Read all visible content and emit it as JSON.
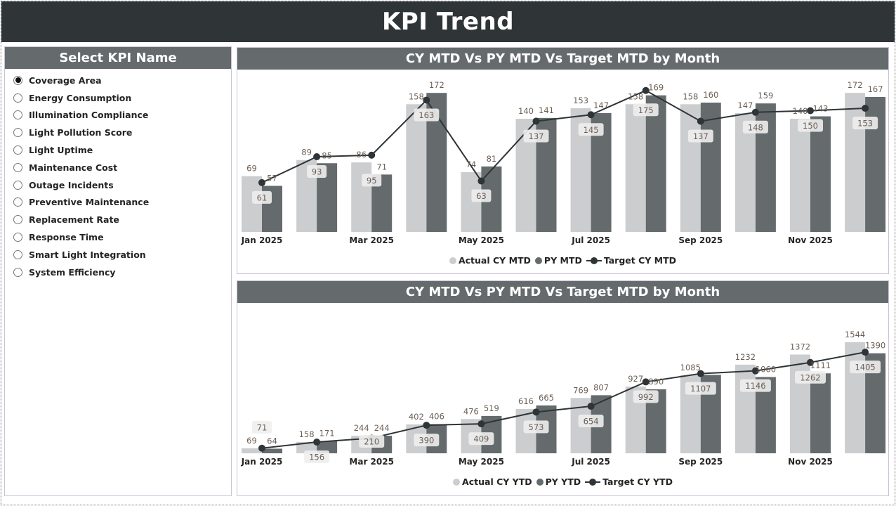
{
  "header": {
    "title": "KPI Trend"
  },
  "kpi_selector": {
    "title": "Select KPI Name",
    "selected": "Coverage Area",
    "items": [
      "Coverage Area",
      "Energy Consumption",
      "Illumination Compliance",
      "Light Pollution Score",
      "Light Uptime",
      "Maintenance Cost",
      "Outage Incidents",
      "Preventive Maintenance",
      "Replacement Rate",
      "Response Time",
      "Smart Light Integration",
      "System Efficiency"
    ]
  },
  "colors": {
    "cy": "#cccdcf",
    "py": "#656b6c",
    "target": "#2f3437",
    "header": "#2f3437",
    "panel_header": "#656b6c",
    "label": "#6b5f55"
  },
  "chart_data": [
    {
      "type": "bar",
      "title": "CY MTD Vs PY MTD Vs Target MTD by Month",
      "categories": [
        "Jan 2025",
        "",
        "Mar 2025",
        "",
        "May 2025",
        "",
        "Jul 2025",
        "",
        "Sep 2025",
        "",
        "Nov 2025",
        ""
      ],
      "ylim": [
        0,
        200
      ],
      "grid": false,
      "legend_position": "bottom",
      "series": [
        {
          "name": "Actual CY MTD",
          "kind": "bar",
          "values": [
            69,
            89,
            86,
            158,
            74,
            140,
            153,
            158,
            158,
            147,
            140,
            172
          ]
        },
        {
          "name": "PY MTD",
          "kind": "bar",
          "values": [
            57,
            85,
            71,
            172,
            81,
            141,
            147,
            169,
            160,
            159,
            143,
            167
          ]
        },
        {
          "name": "Target CY MTD",
          "kind": "line",
          "values": [
            61,
            93,
            95,
            163,
            63,
            137,
            145,
            175,
            137,
            148,
            150,
            153
          ]
        }
      ]
    },
    {
      "type": "bar",
      "title": "CY MTD Vs PY MTD Vs Target MTD by Month",
      "categories": [
        "Jan 2025",
        "",
        "Mar 2025",
        "",
        "May 2025",
        "",
        "Jul 2025",
        "",
        "Sep 2025",
        "",
        "Nov 2025",
        ""
      ],
      "ylim": [
        0,
        2090
      ],
      "grid": false,
      "legend_position": "bottom",
      "series": [
        {
          "name": "Actual CY YTD",
          "kind": "bar",
          "values": [
            69,
            158,
            244,
            402,
            476,
            616,
            769,
            927,
            1085,
            1232,
            1372,
            1544
          ]
        },
        {
          "name": "PY YTD",
          "kind": "bar",
          "values": [
            64,
            171,
            244,
            406,
            519,
            665,
            807,
            890,
            1090,
            1060,
            1111,
            1390
          ],
          "hidden_labels": [
            8
          ]
        },
        {
          "name": "Target CY YTD",
          "kind": "line",
          "values": [
            71,
            156,
            210,
            390,
            409,
            573,
            654,
            992,
            1107,
            1146,
            1262,
            1405
          ]
        }
      ]
    }
  ]
}
